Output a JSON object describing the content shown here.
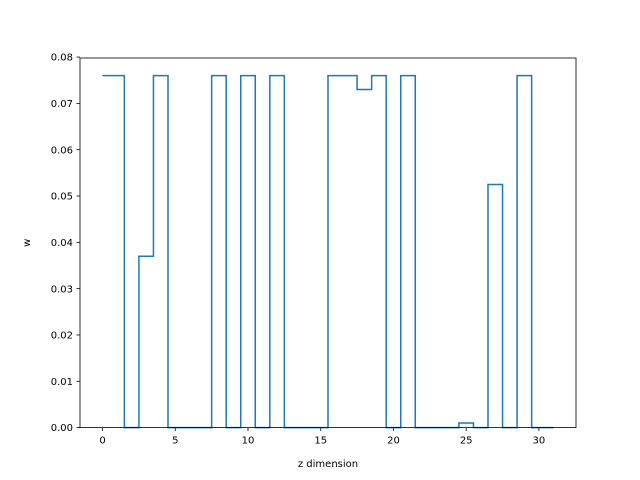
{
  "chart_data": {
    "type": "line",
    "drawstyle": "steps-mid",
    "title": "",
    "xlabel": "z dimension",
    "ylabel": "w",
    "xlim": [
      -1.55,
      32.55
    ],
    "ylim": [
      0.0,
      0.0798
    ],
    "xticks": [
      0,
      5,
      10,
      15,
      20,
      25,
      30
    ],
    "yticks": [
      0.0,
      0.01,
      0.02,
      0.03,
      0.04,
      0.05,
      0.06,
      0.07,
      0.08
    ],
    "ytick_labels": [
      "0.00",
      "0.01",
      "0.02",
      "0.03",
      "0.04",
      "0.05",
      "0.06",
      "0.07",
      "0.08"
    ],
    "grid": false,
    "line_color": "#1f77b4",
    "series": [
      {
        "x": [
          0,
          1,
          2,
          3,
          4,
          5,
          6,
          7,
          8,
          9,
          10,
          11,
          12,
          13,
          14,
          15,
          16,
          17,
          18,
          19,
          20,
          21,
          22,
          23,
          24,
          25,
          26,
          27,
          28,
          29,
          30,
          31
        ],
        "values": [
          0.076,
          0.076,
          0.0,
          0.037,
          0.076,
          0.0,
          0.0,
          0.0,
          0.076,
          0.0,
          0.076,
          0.0,
          0.076,
          0.0,
          0.0,
          0.0,
          0.076,
          0.076,
          0.073,
          0.076,
          0.0,
          0.076,
          0.0,
          0.0,
          0.0,
          0.001,
          0.0,
          0.0525,
          0.0,
          0.076,
          0.0,
          0.0
        ]
      }
    ]
  }
}
